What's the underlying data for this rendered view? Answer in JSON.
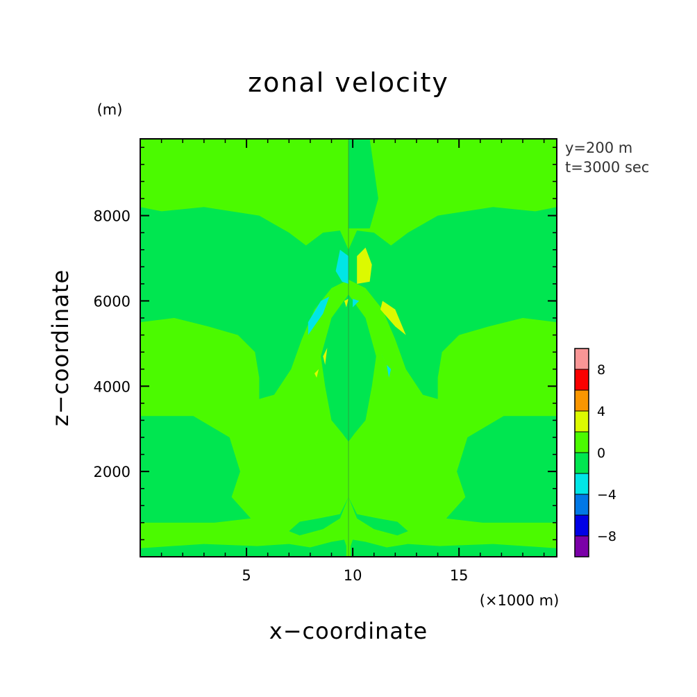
{
  "chart_data": {
    "type": "heatmap",
    "title": "zonal velocity",
    "xlabel": "x−coordinate",
    "ylabel": "z−coordinate",
    "x_unit": "(×1000 m)",
    "y_unit": "(m)",
    "info": [
      "y=200 m",
      "t=3000 sec"
    ],
    "xlim": [
      0,
      19.6
    ],
    "ylim": [
      0,
      9800
    ],
    "x_ticks": [
      {
        "value": 5,
        "label": "5"
      },
      {
        "value": 10,
        "label": "10"
      },
      {
        "value": 15,
        "label": "15"
      }
    ],
    "y_ticks": [
      {
        "value": 2000,
        "label": "2000"
      },
      {
        "value": 4000,
        "label": "4000"
      },
      {
        "value": 6000,
        "label": "6000"
      },
      {
        "value": 8000,
        "label": "8000"
      }
    ],
    "x_minor_step": 1,
    "y_minor_step": 400,
    "colorbar": {
      "levels": [
        -10,
        -8,
        -6,
        -4,
        -2,
        0,
        2,
        4,
        6,
        8,
        10
      ],
      "colors": [
        "#7b00a8",
        "#0000e6",
        "#0078e6",
        "#00e6e6",
        "#00e650",
        "#4bfa00",
        "#dcfa00",
        "#fa9600",
        "#fa0000",
        "#fa9696"
      ],
      "labels": [
        {
          "value": -8,
          "label": "−8"
        },
        {
          "value": -4,
          "label": "−4"
        },
        {
          "value": 0,
          "label": "0"
        },
        {
          "value": 4,
          "label": "4"
        },
        {
          "value": 8,
          "label": "8"
        }
      ]
    },
    "background_value": 1,
    "regions": [
      {
        "value": -1,
        "points": [
          [
            0,
            0
          ],
          [
            0,
            200
          ],
          [
            3,
            300
          ],
          [
            5.5,
            250
          ],
          [
            7,
            300
          ],
          [
            8,
            220
          ],
          [
            9,
            350
          ],
          [
            9.6,
            400
          ],
          [
            9.7,
            250
          ],
          [
            9.7,
            0
          ]
        ]
      },
      {
        "value": -1,
        "points": [
          [
            19.6,
            0
          ],
          [
            19.6,
            200
          ],
          [
            16.6,
            300
          ],
          [
            14.1,
            250
          ],
          [
            12.6,
            300
          ],
          [
            11.6,
            220
          ],
          [
            10.6,
            350
          ],
          [
            10,
            400
          ],
          [
            9.9,
            250
          ],
          [
            9.9,
            0
          ]
        ]
      },
      {
        "value": -1,
        "points": [
          [
            0,
            800
          ],
          [
            3.5,
            800
          ],
          [
            5.2,
            900
          ],
          [
            4.3,
            1400
          ],
          [
            4.7,
            2000
          ],
          [
            4.2,
            2800
          ],
          [
            2.5,
            3300
          ],
          [
            0,
            3300
          ],
          [
            0,
            1200
          ],
          [
            1,
            1350
          ],
          [
            0.2,
            1600
          ],
          [
            0,
            1600
          ]
        ]
      },
      {
        "value": -1,
        "points": [
          [
            19.6,
            800
          ],
          [
            16.1,
            800
          ],
          [
            14.4,
            900
          ],
          [
            15.3,
            1400
          ],
          [
            14.9,
            2000
          ],
          [
            15.4,
            2800
          ],
          [
            17.1,
            3300
          ],
          [
            19.6,
            3300
          ],
          [
            19.6,
            1200
          ],
          [
            18.6,
            1350
          ],
          [
            19.4,
            1600
          ],
          [
            19.6,
            1600
          ]
        ]
      },
      {
        "value": -1,
        "points": [
          [
            7.5,
            500
          ],
          [
            8.6,
            650
          ],
          [
            9.4,
            900
          ],
          [
            9.8,
            1400
          ],
          [
            9.4,
            1000
          ],
          [
            8.4,
            900
          ],
          [
            7.5,
            820
          ],
          [
            7.0,
            600
          ]
        ]
      },
      {
        "value": -1,
        "points": [
          [
            12.1,
            500
          ],
          [
            11.0,
            650
          ],
          [
            10.2,
            900
          ],
          [
            9.8,
            1400
          ],
          [
            10.2,
            1000
          ],
          [
            11.2,
            900
          ],
          [
            12.1,
            820
          ],
          [
            12.6,
            600
          ]
        ]
      },
      {
        "value": -1,
        "points": [
          [
            0,
            5500
          ],
          [
            1.6,
            5600
          ],
          [
            3.2,
            5400
          ],
          [
            4.6,
            5200
          ],
          [
            5.4,
            4800
          ],
          [
            5.6,
            4200
          ],
          [
            5.6,
            3700
          ],
          [
            6.3,
            3800
          ],
          [
            7.1,
            4400
          ],
          [
            7.6,
            5100
          ],
          [
            8.2,
            5800
          ],
          [
            9.0,
            6300
          ],
          [
            9.8,
            6500
          ],
          [
            9.8,
            6150
          ],
          [
            9.0,
            5600
          ],
          [
            8.5,
            4700
          ],
          [
            8.7,
            4000
          ],
          [
            9.0,
            3200
          ],
          [
            9.5,
            2900
          ],
          [
            9.8,
            2700
          ],
          [
            9.8,
            7200
          ],
          [
            9.4,
            7650
          ],
          [
            8.6,
            7600
          ],
          [
            7.8,
            7300
          ],
          [
            7.0,
            7600
          ],
          [
            5.6,
            8000
          ],
          [
            3.0,
            8200
          ],
          [
            1.0,
            8100
          ],
          [
            0,
            8200
          ]
        ]
      },
      {
        "value": -1,
        "points": [
          [
            19.6,
            5500
          ],
          [
            18.0,
            5600
          ],
          [
            16.4,
            5400
          ],
          [
            15.0,
            5200
          ],
          [
            14.2,
            4800
          ],
          [
            14.0,
            4200
          ],
          [
            14.0,
            3700
          ],
          [
            13.3,
            3800
          ],
          [
            12.5,
            4400
          ],
          [
            12.0,
            5100
          ],
          [
            11.4,
            5800
          ],
          [
            10.6,
            6300
          ],
          [
            9.8,
            6500
          ],
          [
            9.8,
            6150
          ],
          [
            10.6,
            5600
          ],
          [
            11.1,
            4700
          ],
          [
            10.9,
            4000
          ],
          [
            10.6,
            3200
          ],
          [
            10.1,
            2900
          ],
          [
            9.8,
            2700
          ],
          [
            9.8,
            7200
          ],
          [
            10.2,
            7650
          ],
          [
            11.0,
            7600
          ],
          [
            11.8,
            7300
          ],
          [
            12.6,
            7600
          ],
          [
            14.0,
            8000
          ],
          [
            16.6,
            8200
          ],
          [
            18.6,
            8100
          ],
          [
            19.6,
            8200
          ]
        ]
      },
      {
        "value": -1,
        "points": [
          [
            9.8,
            7700
          ],
          [
            10.8,
            7700
          ],
          [
            11.2,
            8400
          ],
          [
            10.8,
            9800
          ],
          [
            9.8,
            9800
          ]
        ]
      },
      {
        "value": 1,
        "points": [
          [
            7.4,
            1900
          ],
          [
            8.4,
            2200
          ],
          [
            9.0,
            2500
          ],
          [
            8.6,
            2700
          ],
          [
            7.8,
            2600
          ],
          [
            7.3,
            2300
          ]
        ]
      },
      {
        "value": 1,
        "points": [
          [
            12.2,
            1900
          ],
          [
            11.2,
            2200
          ],
          [
            10.6,
            2500
          ],
          [
            11.0,
            2700
          ],
          [
            11.8,
            2600
          ],
          [
            12.3,
            2300
          ]
        ]
      },
      {
        "value": -3,
        "points": [
          [
            9.4,
            7200
          ],
          [
            9.8,
            7050
          ],
          [
            9.8,
            6400
          ],
          [
            9.5,
            6450
          ],
          [
            9.2,
            6700
          ]
        ]
      },
      {
        "value": 3,
        "points": [
          [
            10.2,
            7050
          ],
          [
            10.6,
            7250
          ],
          [
            10.9,
            6850
          ],
          [
            10.8,
            6450
          ],
          [
            10.2,
            6400
          ]
        ]
      },
      {
        "value": -3,
        "points": [
          [
            7.9,
            5200
          ],
          [
            8.6,
            5700
          ],
          [
            8.9,
            6100
          ],
          [
            8.5,
            6000
          ],
          [
            7.9,
            5500
          ]
        ]
      },
      {
        "value": 3,
        "points": [
          [
            11.4,
            6000
          ],
          [
            12.0,
            5800
          ],
          [
            12.5,
            5200
          ],
          [
            12.0,
            5400
          ],
          [
            11.3,
            5800
          ]
        ]
      },
      {
        "value": 3,
        "points": [
          [
            8.6,
            4700
          ],
          [
            8.8,
            4900
          ],
          [
            8.7,
            4500
          ]
        ]
      },
      {
        "value": 3,
        "points": [
          [
            8.3,
            4200
          ],
          [
            8.4,
            4400
          ],
          [
            8.2,
            4300
          ]
        ]
      },
      {
        "value": -3,
        "points": [
          [
            11.3,
            4800
          ],
          [
            11.6,
            4500
          ],
          [
            11.4,
            4700
          ]
        ]
      },
      {
        "value": -3,
        "points": [
          [
            11.7,
            4200
          ],
          [
            11.8,
            4400
          ],
          [
            11.6,
            4500
          ]
        ]
      },
      {
        "value": 3,
        "points": [
          [
            9.6,
            6000
          ],
          [
            9.8,
            6050
          ],
          [
            9.7,
            5850
          ]
        ]
      },
      {
        "value": -3,
        "points": [
          [
            10.0,
            6050
          ],
          [
            10.3,
            6000
          ],
          [
            10.0,
            5850
          ]
        ]
      }
    ]
  }
}
